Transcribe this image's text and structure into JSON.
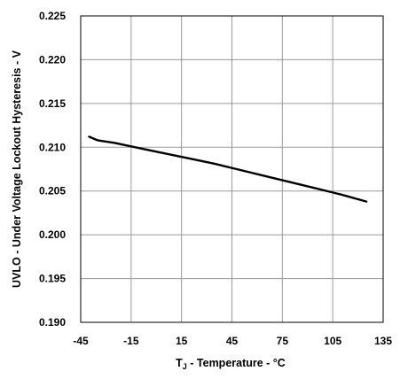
{
  "chart_data": {
    "type": "line",
    "title": "",
    "xlabel": {
      "main": "T",
      "sub": "J",
      "rest": " - Temperature - °C"
    },
    "ylabel": "UVLO - Under Voltage Lockout  Hysteresis  - V",
    "xlim": [
      -45,
      135
    ],
    "ylim": [
      0.19,
      0.225
    ],
    "x_ticks": [
      -45,
      -15,
      15,
      45,
      75,
      105,
      135
    ],
    "x_tick_labels": [
      "-45",
      "-15",
      "15",
      "45",
      "75",
      "105",
      "135"
    ],
    "y_ticks": [
      0.19,
      0.195,
      0.2,
      0.205,
      0.21,
      0.215,
      0.22,
      0.225
    ],
    "y_tick_labels": [
      "0.190",
      "0.195",
      "0.200",
      "0.205",
      "0.210",
      "0.215",
      "0.220",
      "0.225"
    ],
    "grid": true,
    "legend": "none",
    "series": [
      {
        "color": "#000000",
        "x": [
          -40,
          -35,
          -25,
          -15,
          -5,
          10,
          25,
          35,
          50,
          65,
          80,
          95,
          110,
          125
        ],
        "y": [
          0.2112,
          0.2108,
          0.2105,
          0.2101,
          0.2097,
          0.2091,
          0.2085,
          0.2081,
          0.2074,
          0.2067,
          0.206,
          0.2053,
          0.2046,
          0.2038
        ]
      }
    ]
  }
}
